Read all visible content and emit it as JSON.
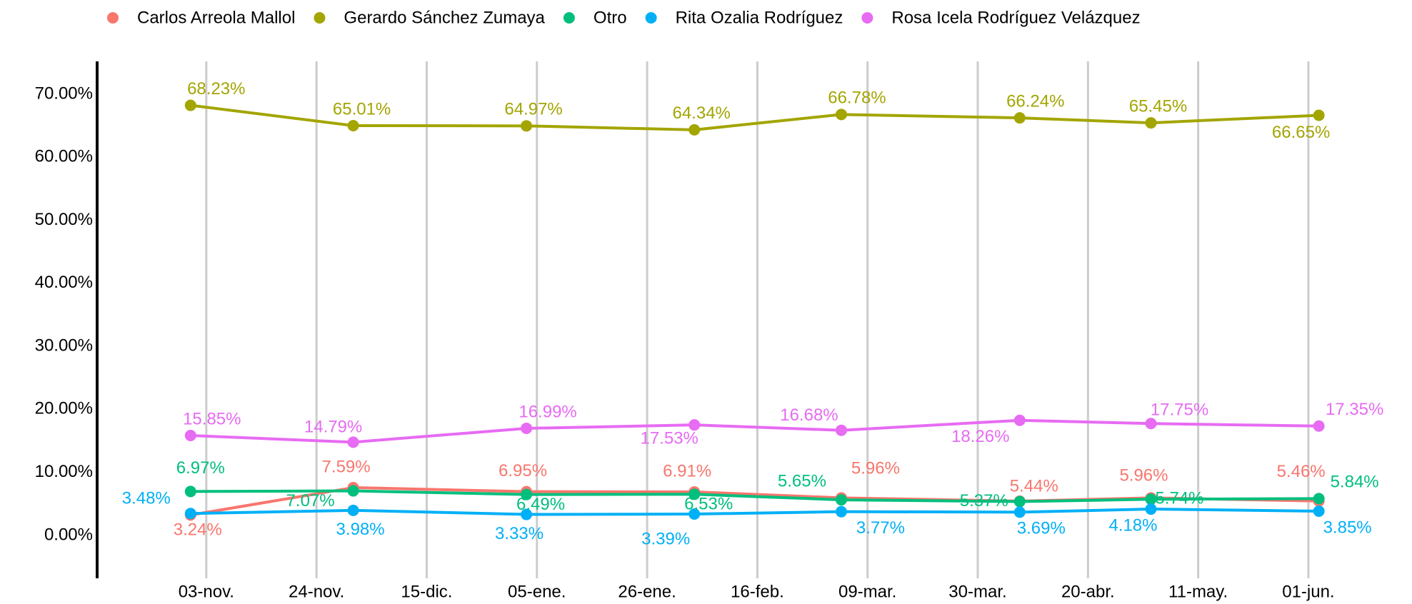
{
  "chart_data": {
    "type": "line",
    "xlim": [
      -20.8,
      229.2
    ],
    "xticks": [
      {
        "value": 0,
        "label": "03-nov."
      },
      {
        "value": 21,
        "label": "24-nov."
      },
      {
        "value": 42,
        "label": "15-dic."
      },
      {
        "value": 63,
        "label": "05-ene."
      },
      {
        "value": 84,
        "label": "26-ene."
      },
      {
        "value": 105,
        "label": "16-feb."
      },
      {
        "value": 126,
        "label": "09-mar."
      },
      {
        "value": 147,
        "label": "30-mar."
      },
      {
        "value": 168,
        "label": "20-abr."
      },
      {
        "value": 189,
        "label": "11-may."
      },
      {
        "value": 210,
        "label": "01-jun."
      }
    ],
    "ylim": [
      -6.8,
      75.2
    ],
    "yticks": [
      {
        "value": 0,
        "label": "0.00%"
      },
      {
        "value": 10,
        "label": "10.00%"
      },
      {
        "value": 20,
        "label": "20.00%"
      },
      {
        "value": 30,
        "label": "30.00%"
      },
      {
        "value": 40,
        "label": "40.00%"
      },
      {
        "value": 50,
        "label": "50.00%"
      },
      {
        "value": 60,
        "label": "60.00%"
      },
      {
        "value": 70,
        "label": "70.00%"
      }
    ],
    "grid": "x",
    "legend": "top",
    "x": [
      -3,
      28,
      61,
      93,
      121,
      155,
      180,
      212
    ],
    "series": [
      {
        "name": "Carlos Arreola Mallol",
        "color": "#F8766D",
        "values": [
          3.24,
          7.59,
          6.95,
          6.91,
          5.96,
          5.44,
          5.96,
          5.46
        ],
        "value_labels": [
          "3.24%",
          "7.59%",
          "6.95%",
          "6.91%",
          "5.96%",
          "5.44%",
          "5.96%",
          "5.46%"
        ]
      },
      {
        "name": "Gerardo Sánchez Zumaya",
        "color": "#A3A500",
        "values": [
          68.23,
          65.01,
          64.97,
          64.34,
          66.78,
          66.24,
          65.45,
          66.65
        ],
        "value_labels": [
          "68.23%",
          "65.01%",
          "64.97%",
          "64.34%",
          "66.78%",
          "66.24%",
          "65.45%",
          "66.65%"
        ]
      },
      {
        "name": "Otro",
        "color": "#00BF7D",
        "values": [
          6.97,
          7.07,
          6.49,
          6.53,
          5.65,
          5.37,
          5.74,
          5.84
        ],
        "value_labels": [
          "6.97%",
          "7.07%",
          "6.49%",
          "6.53%",
          "5.65%",
          "5.37%",
          "5.74%",
          "5.84%"
        ]
      },
      {
        "name": "Rita Ozalia Rodríguez",
        "color": "#00B0F6",
        "values": [
          3.48,
          3.98,
          3.33,
          3.39,
          3.77,
          3.69,
          4.18,
          3.85
        ],
        "value_labels": [
          "3.48%",
          "3.98%",
          "3.33%",
          "3.39%",
          "3.77%",
          "3.69%",
          "4.18%",
          "3.85%"
        ]
      },
      {
        "name": "Rosa Icela Rodríguez Velázquez",
        "color": "#E76BF3",
        "values": [
          15.85,
          14.79,
          16.99,
          17.53,
          16.68,
          18.26,
          17.75,
          17.35
        ],
        "value_labels": [
          "15.85%",
          "14.79%",
          "16.99%",
          "17.53%",
          "16.68%",
          "18.26%",
          "17.75%",
          "17.35%"
        ]
      }
    ]
  }
}
